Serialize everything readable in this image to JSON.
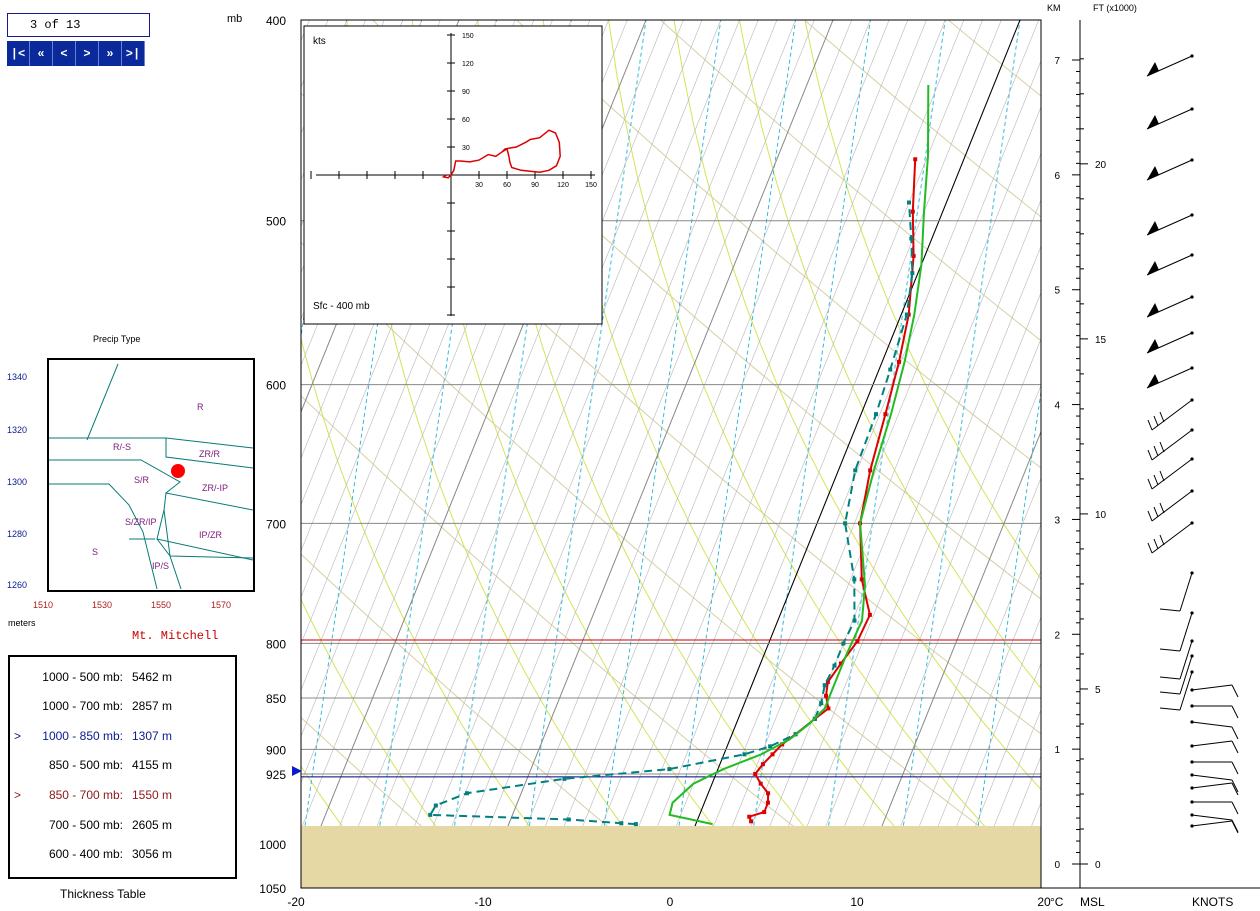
{
  "nav": {
    "counter": "3 of 13",
    "buttons": [
      "|<",
      "«",
      "<",
      ">",
      "»",
      ">|"
    ]
  },
  "precip": {
    "title": "Precip Type",
    "ylabel": "meters",
    "yticks": [
      "1340",
      "1320",
      "1300",
      "1280",
      "1260"
    ],
    "xticks": [
      "1510",
      "1530",
      "1550",
      "1570"
    ],
    "regions": [
      "R",
      "R/-S",
      "ZR/R",
      "S/R",
      "ZR/-IP",
      "S/ZR/IP",
      "IP/ZR",
      "S",
      "IP/S"
    ],
    "point": {
      "x": 1554,
      "y": 1305
    },
    "point_color": "#ff0000"
  },
  "station": "Mt. Mitchell",
  "thickness": {
    "title": "Thickness Table",
    "rows": [
      {
        "mark": "",
        "label": "1000 - 500 mb:",
        "value": "5462 m",
        "color": "#000000"
      },
      {
        "mark": "",
        "label": "1000 - 700 mb:",
        "value": "2857 m",
        "color": "#000000"
      },
      {
        "mark": ">",
        "label": "1000 - 850 mb:",
        "value": "1307 m",
        "color": "#0a1a8c"
      },
      {
        "mark": "",
        "label": "850 - 500 mb:",
        "value": "4155 m",
        "color": "#000000"
      },
      {
        "mark": ">",
        "label": "850 - 700 mb:",
        "value": "1550 m",
        "color": "#8c1a1a"
      },
      {
        "mark": "",
        "label": "700 - 500 mb:",
        "value": "2605 m",
        "color": "#000000"
      },
      {
        "mark": "",
        "label": "600 - 400 mb:",
        "value": "3056 m",
        "color": "#000000"
      }
    ]
  },
  "chart_data": {
    "type": "line",
    "pressure_label": "mb",
    "pressure_ticks": [
      "400",
      "500",
      "600",
      "700",
      "800",
      "850",
      "900",
      "925",
      "1000",
      "1050"
    ],
    "temp_ticks": [
      "-20",
      "-10",
      "0",
      "10",
      "20"
    ],
    "temp_unit": "°C",
    "km_label": "KM",
    "ft_label": "FT (x1000)",
    "km_ticks": [
      "7",
      "6",
      "5",
      "4",
      "3",
      "2",
      "1",
      "0"
    ],
    "ft_ticks": [
      "20",
      "15",
      "10",
      "5",
      "0"
    ],
    "msl_label": "MSL",
    "knots_label": "KNOTS",
    "series": [
      {
        "name": "Temperature",
        "color": "#dd0000",
        "points": [
          [
            2.9,
            975
          ],
          [
            2.7,
            970
          ],
          [
            3.4,
            965
          ],
          [
            3.4,
            955
          ],
          [
            3.2,
            945
          ],
          [
            2.6,
            935
          ],
          [
            2.1,
            925
          ],
          [
            2.3,
            915
          ],
          [
            2.6,
            905
          ],
          [
            2.9,
            895
          ],
          [
            3.4,
            885
          ],
          [
            4.1,
            870
          ],
          [
            4.6,
            860
          ],
          [
            4.2,
            848
          ],
          [
            4.0,
            835
          ],
          [
            4.3,
            818
          ],
          [
            4.7,
            798
          ],
          [
            4.8,
            775
          ],
          [
            3.6,
            745
          ],
          [
            2.3,
            700
          ],
          [
            1.7,
            660
          ],
          [
            1.3,
            620
          ],
          [
            0.9,
            585
          ],
          [
            0.4,
            555
          ],
          [
            -0.6,
            520
          ],
          [
            -1.6,
            495
          ],
          [
            -2.6,
            467
          ]
        ]
      },
      {
        "name": "Dew point",
        "color": "#008080",
        "dash": "8,5",
        "points": [
          [
            -3.2,
            978
          ],
          [
            -4.0,
            977
          ],
          [
            -6.9,
            973
          ],
          [
            -14.4,
            968
          ],
          [
            -14.3,
            958
          ],
          [
            -12.9,
            945
          ],
          [
            -8.0,
            930
          ],
          [
            -2.6,
            920
          ],
          [
            1.1,
            905
          ],
          [
            2.3,
            897
          ],
          [
            3.4,
            885
          ],
          [
            4.1,
            870
          ],
          [
            4.1,
            855
          ],
          [
            3.9,
            838
          ],
          [
            4.0,
            820
          ],
          [
            4.0,
            800
          ],
          [
            4.1,
            780
          ],
          [
            3.2,
            745
          ],
          [
            1.5,
            700
          ],
          [
            0.9,
            660
          ],
          [
            0.8,
            620
          ],
          [
            0.6,
            590
          ],
          [
            0.3,
            555
          ],
          [
            -0.3,
            530
          ],
          [
            -1.1,
            510
          ],
          [
            -2.0,
            490
          ]
        ]
      },
      {
        "name": "Wet bulb",
        "color": "#22bb22",
        "points": [
          [
            0.9,
            978
          ],
          [
            -1.6,
            968
          ],
          [
            -1.7,
            955
          ],
          [
            -1.0,
            935
          ],
          [
            0.3,
            920
          ],
          [
            2.0,
            905
          ],
          [
            3.2,
            890
          ],
          [
            3.9,
            875
          ],
          [
            4.4,
            860
          ],
          [
            4.4,
            840
          ],
          [
            4.4,
            810
          ],
          [
            4.5,
            780
          ],
          [
            3.9,
            750
          ],
          [
            2.3,
            700
          ],
          [
            1.9,
            660
          ],
          [
            1.6,
            620
          ],
          [
            1.2,
            585
          ],
          [
            0.7,
            555
          ],
          [
            0.0,
            525
          ],
          [
            -1.0,
            495
          ],
          [
            -2.0,
            465
          ],
          [
            -3.5,
            430
          ]
        ]
      }
    ],
    "reference_lines": [
      {
        "pressure": 797,
        "color": "#cc0000"
      },
      {
        "pressure": 928,
        "color": "#000080"
      }
    ],
    "hodograph": {
      "label": "kts",
      "caption": "Sfc - 400 mb",
      "xticks": [
        "30",
        "60",
        "90",
        "120",
        "150"
      ],
      "yticks": [
        "150",
        "120",
        "90",
        "60",
        "30"
      ],
      "points": [
        [
          -5,
          0
        ],
        [
          -8,
          -2
        ],
        [
          -3,
          -3
        ],
        [
          0,
          0
        ],
        [
          3,
          5
        ],
        [
          5,
          15
        ],
        [
          10,
          15
        ],
        [
          20,
          14
        ],
        [
          30,
          16
        ],
        [
          40,
          22
        ],
        [
          48,
          20
        ],
        [
          55,
          25
        ],
        [
          60,
          28
        ],
        [
          62,
          20
        ],
        [
          63,
          14
        ],
        [
          65,
          8
        ],
        [
          75,
          5
        ],
        [
          95,
          3
        ],
        [
          105,
          5
        ],
        [
          113,
          10
        ],
        [
          117,
          20
        ],
        [
          116,
          35
        ],
        [
          112,
          45
        ],
        [
          105,
          48
        ],
        [
          95,
          40
        ],
        [
          85,
          38
        ],
        [
          80,
          35
        ],
        [
          70,
          30
        ],
        [
          58,
          28
        ],
        [
          55,
          25
        ]
      ]
    }
  }
}
